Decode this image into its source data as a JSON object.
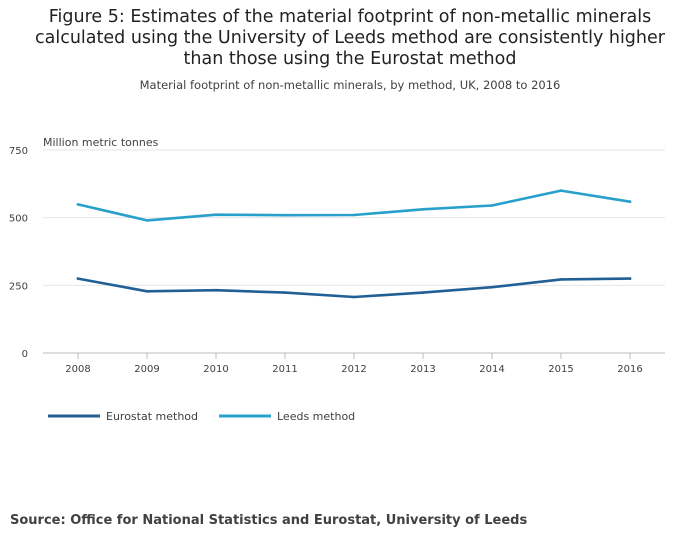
{
  "chart_data": {
    "type": "line",
    "title": "Figure 5: Estimates of the material footprint of non-metallic minerals calculated using the University of Leeds method are consistently higher than those using the Eurostat method",
    "title_lines": [
      "Figure 5: Estimates of the material footprint of non-metallic minerals",
      "calculated using the University of Leeds method are consistently higher",
      "than those using the Eurostat method"
    ],
    "subtitle": "Material footprint of non-metallic minerals, by method, UK, 2008 to 2016",
    "ylabel": "Million metric tonnes",
    "xlabel": "",
    "categories": [
      "2008",
      "2009",
      "2010",
      "2011",
      "2012",
      "2013",
      "2014",
      "2015",
      "2016"
    ],
    "ylim": [
      0,
      750
    ],
    "yticks": [
      0,
      250,
      500,
      750
    ],
    "series": [
      {
        "name": "Eurostat method",
        "color": "#206095",
        "values": [
          275,
          228,
          232,
          223,
          207,
          223,
          243,
          272,
          275
        ]
      },
      {
        "name": "Leeds method",
        "color": "#27a0cc",
        "values": [
          549,
          490,
          511,
          509,
          510,
          531,
          545,
          600,
          559
        ]
      }
    ],
    "legend_position": "bottom-left",
    "grid": true
  },
  "source": "Source: Office for National Statistics and Eurostat, University of Leeds"
}
